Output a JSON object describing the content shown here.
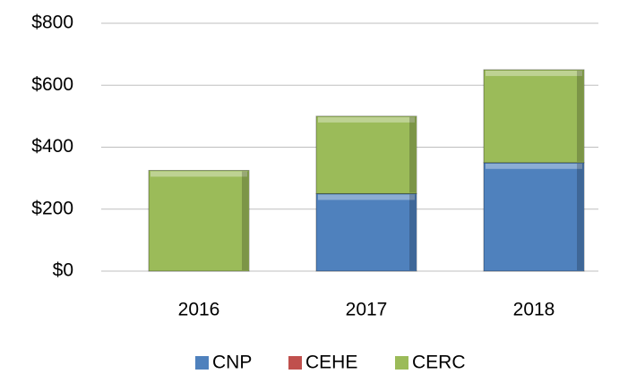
{
  "chart_data": {
    "type": "stacked_bar",
    "categories": [
      "2016",
      "2017",
      "2018"
    ],
    "series": [
      {
        "name": "CNP",
        "color": "#4f81bd",
        "values": [
          0,
          250,
          350
        ]
      },
      {
        "name": "CEHE",
        "color": "#c0504d",
        "values": [
          0,
          0,
          0
        ]
      },
      {
        "name": "CERC",
        "color": "#9bbb59",
        "values": [
          325,
          250,
          300
        ]
      }
    ],
    "ylim": [
      0,
      800
    ],
    "yticks": [
      {
        "value": 0,
        "label": "$0"
      },
      {
        "value": 200,
        "label": "$200"
      },
      {
        "value": 400,
        "label": "$400"
      },
      {
        "value": 600,
        "label": "$600"
      },
      {
        "value": 800,
        "label": "$800"
      }
    ],
    "grid": true,
    "legend": "bottom"
  }
}
